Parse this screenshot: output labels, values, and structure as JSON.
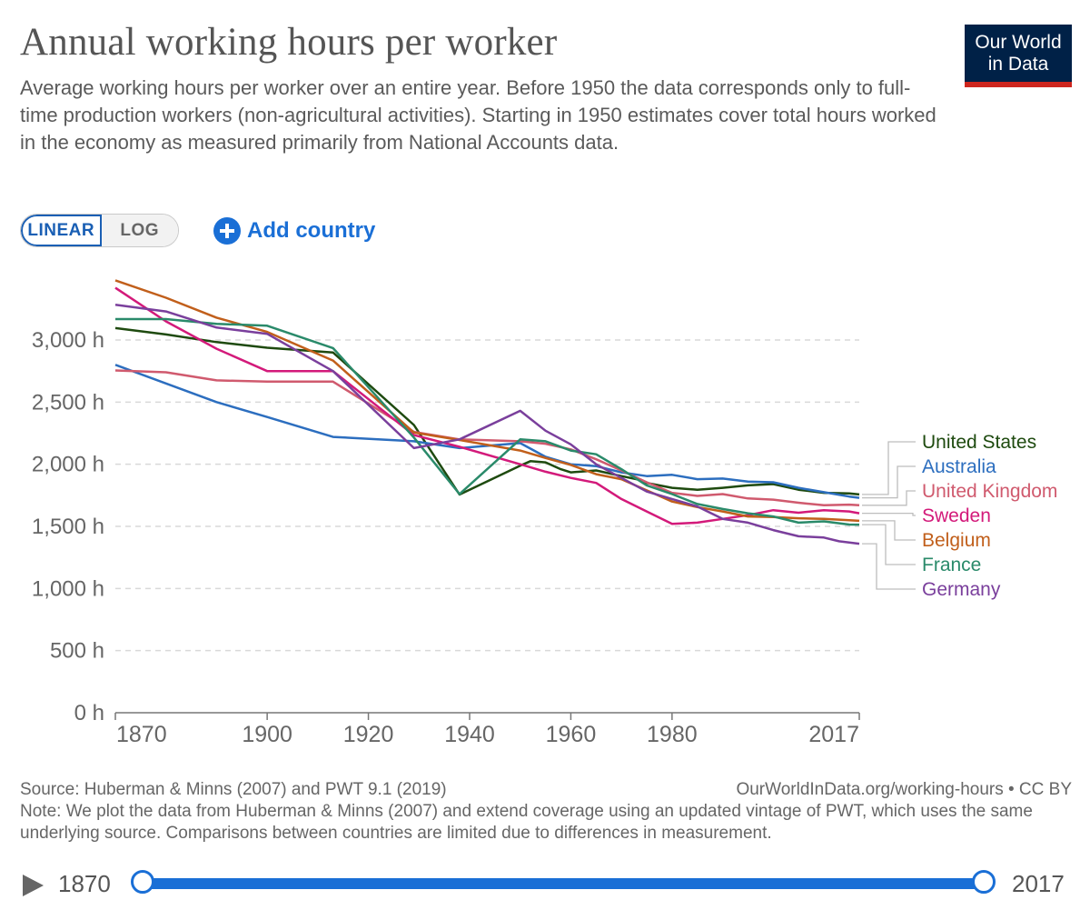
{
  "title": "Annual working hours per worker",
  "subtitle": "Average working hours per worker over an entire year. Before 1950 the data corresponds only to full-time production workers (non-agricultural activities). Starting in 1950 estimates cover total hours worked in the economy as measured primarily from National Accounts data.",
  "logo": {
    "line1": "Our World",
    "line2": "in Data",
    "bg": "#002147",
    "accent": "#ce261e"
  },
  "controls": {
    "linear_label": "LINEAR",
    "log_label": "LOG",
    "add_country_label": "Add country",
    "add_icon": "plus-circle-icon",
    "accent": "#1a6fd6"
  },
  "footer": {
    "source": "Source: Huberman & Minns (2007) and PWT 9.1 (2019)",
    "url": "OurWorldInData.org/working-hours • CC BY",
    "note": "Note: We plot the data from Huberman & Minns (2007) and extend coverage using an updated vintage of PWT, which uses the same underlying source. Comparisons between countries are limited due to differences in measurement."
  },
  "timeline": {
    "start": "1870",
    "end": "2017",
    "play_icon": "play-icon"
  },
  "chart_data": {
    "type": "line",
    "title": "Annual working hours per worker",
    "y_tick_labels": [
      "0 h",
      "500 h",
      "1,000 h",
      "1,500 h",
      "2,000 h",
      "2,500 h",
      "3,000 h"
    ],
    "y_ticks": [
      0,
      500,
      1000,
      1500,
      2000,
      2500,
      3000
    ],
    "x_tick_labels": [
      "1870",
      "1900",
      "1920",
      "1940",
      "1960",
      "1980",
      "2017"
    ],
    "x_ticks": [
      1870,
      1900,
      1920,
      1940,
      1960,
      1980,
      2017
    ],
    "xlim": [
      1870,
      2017
    ],
    "ylim": [
      0,
      3500
    ],
    "grid": "horizontal dashed",
    "legend": "right, end-of-line labels",
    "series": [
      {
        "name": "United States",
        "color": "#1e4a0f",
        "x": [
          1870,
          1880,
          1890,
          1900,
          1913,
          1929,
          1938,
          1950,
          1952,
          1955,
          1958,
          1960,
          1965,
          1970,
          1973,
          1975,
          1980,
          1985,
          1990,
          1995,
          2000,
          2005,
          2010,
          2015,
          2017
        ],
        "y": [
          3096,
          3045,
          2983,
          2938,
          2900,
          2316,
          1756,
          1989,
          2025,
          2015,
          1960,
          1935,
          1950,
          1905,
          1880,
          1850,
          1810,
          1795,
          1810,
          1830,
          1840,
          1795,
          1770,
          1765,
          1757
        ]
      },
      {
        "name": "Australia",
        "color": "#2c6ebf",
        "x": [
          1870,
          1890,
          1900,
          1913,
          1929,
          1938,
          1950,
          1955,
          1960,
          1965,
          1970,
          1975,
          1980,
          1985,
          1990,
          1995,
          2000,
          2005,
          2010,
          2015,
          2017
        ],
        "y": [
          2800,
          2500,
          2380,
          2220,
          2185,
          2130,
          2170,
          2060,
          2000,
          1985,
          1935,
          1905,
          1915,
          1880,
          1885,
          1860,
          1855,
          1810,
          1775,
          1740,
          1730
        ]
      },
      {
        "name": "United Kingdom",
        "color": "#d05a6e",
        "x": [
          1870,
          1880,
          1890,
          1900,
          1913,
          1929,
          1938,
          1950,
          1955,
          1960,
          1965,
          1970,
          1975,
          1980,
          1985,
          1990,
          1995,
          2000,
          2005,
          2010,
          2015,
          2017
        ],
        "y": [
          2755,
          2740,
          2675,
          2665,
          2665,
          2260,
          2200,
          2185,
          2165,
          2120,
          2040,
          1950,
          1855,
          1770,
          1745,
          1760,
          1725,
          1715,
          1690,
          1670,
          1675,
          1670
        ]
      },
      {
        "name": "Sweden",
        "color": "#d31a7a",
        "x": [
          1870,
          1880,
          1890,
          1900,
          1913,
          1929,
          1938,
          1950,
          1955,
          1960,
          1965,
          1970,
          1975,
          1980,
          1985,
          1990,
          1995,
          2000,
          2005,
          2010,
          2015,
          2017
        ],
        "y": [
          3420,
          3150,
          2930,
          2750,
          2750,
          2235,
          2140,
          2000,
          1940,
          1890,
          1850,
          1720,
          1620,
          1520,
          1530,
          1560,
          1590,
          1630,
          1610,
          1630,
          1620,
          1605
        ]
      },
      {
        "name": "Belgium",
        "color": "#c15f1b",
        "x": [
          1870,
          1880,
          1890,
          1900,
          1913,
          1929,
          1938,
          1950,
          1955,
          1960,
          1965,
          1970,
          1975,
          1980,
          1985,
          1990,
          1995,
          2000,
          2005,
          2010,
          2015,
          2017
        ],
        "y": [
          3480,
          3340,
          3180,
          3065,
          2835,
          2255,
          2195,
          2110,
          2050,
          1995,
          1920,
          1880,
          1790,
          1700,
          1655,
          1620,
          1580,
          1575,
          1565,
          1560,
          1550,
          1545
        ]
      },
      {
        "name": "France",
        "color": "#2a8a6a",
        "x": [
          1870,
          1880,
          1890,
          1900,
          1913,
          1929,
          1938,
          1950,
          1955,
          1960,
          1965,
          1970,
          1975,
          1980,
          1985,
          1990,
          1995,
          2000,
          2005,
          2010,
          2015,
          2017
        ],
        "y": [
          3168,
          3168,
          3130,
          3115,
          2935,
          2215,
          1760,
          2200,
          2185,
          2110,
          2080,
          1960,
          1830,
          1760,
          1680,
          1640,
          1605,
          1580,
          1530,
          1540,
          1515,
          1514
        ]
      },
      {
        "name": "Germany",
        "color": "#7a3f9c",
        "x": [
          1870,
          1880,
          1890,
          1900,
          1913,
          1929,
          1938,
          1950,
          1955,
          1960,
          1965,
          1970,
          1975,
          1980,
          1985,
          1990,
          1995,
          2000,
          2005,
          2010,
          2013,
          2015,
          2017
        ],
        "y": [
          3284,
          3230,
          3100,
          3050,
          2750,
          2130,
          2200,
          2430,
          2270,
          2160,
          2000,
          1890,
          1780,
          1720,
          1660,
          1560,
          1530,
          1470,
          1420,
          1410,
          1380,
          1370,
          1360
        ]
      }
    ]
  }
}
